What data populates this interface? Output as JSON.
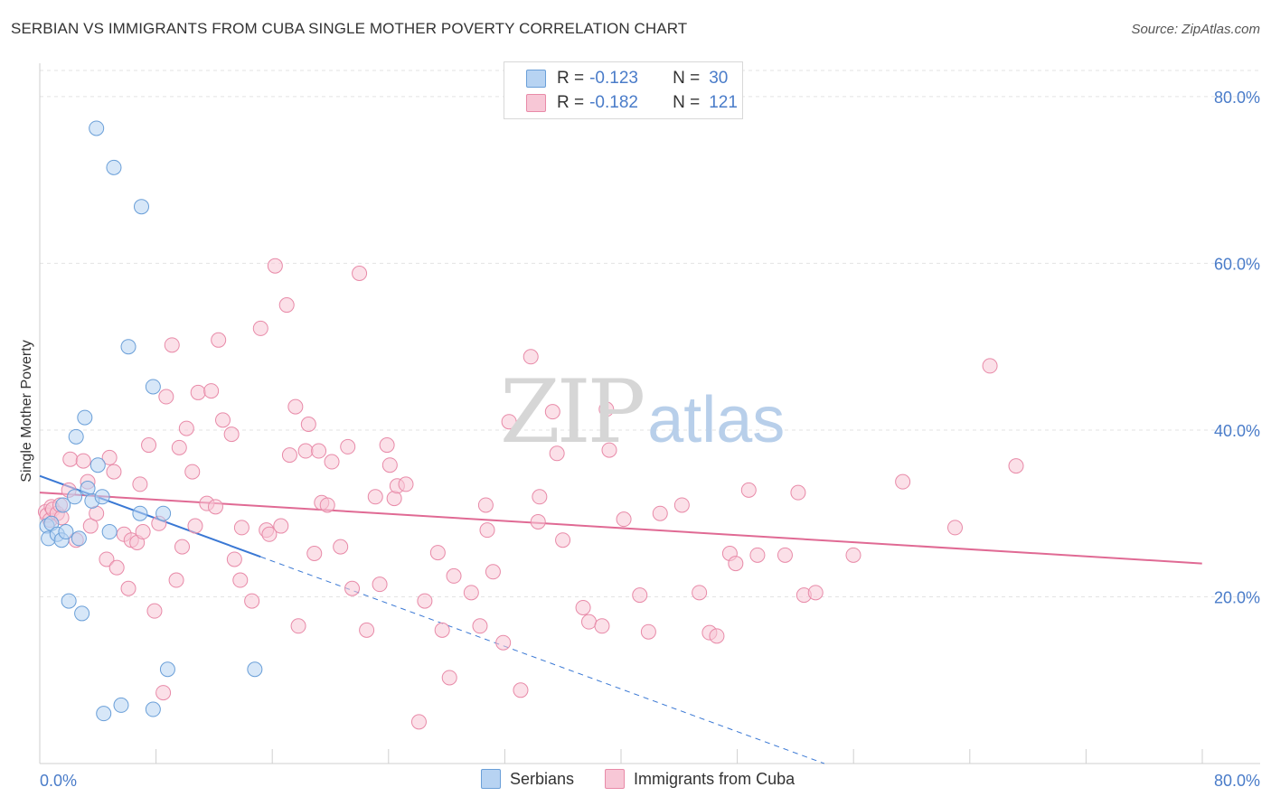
{
  "header": {
    "title": "SERBIAN VS IMMIGRANTS FROM CUBA SINGLE MOTHER POVERTY CORRELATION CHART",
    "source": "Source: ZipAtlas.com"
  },
  "watermark": {
    "main": "ZIP",
    "sub": "atlas"
  },
  "legend": {
    "r_label": "R =",
    "n_label": "N =",
    "series": [
      {
        "r": "-0.123",
        "n": "30"
      },
      {
        "r": "-0.182",
        "n": "121"
      }
    ]
  },
  "colors": {
    "serbians_fill": "#b7d3f2",
    "serbians_stroke": "#6a9fd8",
    "serbians_line": "#3a78d4",
    "cuba_fill": "#f7c7d6",
    "cuba_stroke": "#e88aa8",
    "cuba_line": "#e06a94",
    "tick_text": "#4a7cc9"
  },
  "chart_data": {
    "type": "scatter",
    "title": "SERBIAN VS IMMIGRANTS FROM CUBA SINGLE MOTHER POVERTY CORRELATION CHART",
    "xlabel": "",
    "ylabel": "Single Mother Poverty",
    "xlim": [
      0,
      84
    ],
    "ylim": [
      0,
      84
    ],
    "x_tick_labels": [
      "0.0%",
      "80.0%"
    ],
    "y_ticks": [
      20,
      40,
      60,
      80
    ],
    "y_tick_labels": [
      "20.0%",
      "40.0%",
      "60.0%",
      "80.0%"
    ],
    "grid": true,
    "series": [
      {
        "name": "Serbians",
        "r": -0.123,
        "n": 30,
        "points": [
          [
            0.5,
            28.5
          ],
          [
            0.6,
            27.0
          ],
          [
            0.8,
            28.8
          ],
          [
            1.2,
            27.5
          ],
          [
            1.5,
            26.8
          ],
          [
            1.6,
            31.0
          ],
          [
            1.8,
            27.8
          ],
          [
            2.0,
            19.5
          ],
          [
            2.4,
            32.0
          ],
          [
            2.5,
            39.2
          ],
          [
            2.7,
            27.0
          ],
          [
            2.9,
            18.0
          ],
          [
            3.1,
            41.5
          ],
          [
            3.3,
            33.0
          ],
          [
            3.6,
            31.5
          ],
          [
            4.0,
            35.8
          ],
          [
            4.3,
            32.0
          ],
          [
            4.8,
            27.8
          ],
          [
            5.1,
            71.5
          ],
          [
            5.6,
            7.0
          ],
          [
            6.1,
            50.0
          ],
          [
            6.9,
            30.0
          ],
          [
            7.8,
            6.5
          ],
          [
            7.8,
            45.2
          ],
          [
            8.5,
            30.0
          ],
          [
            8.8,
            11.3
          ],
          [
            14.8,
            11.3
          ],
          [
            7.0,
            66.8
          ],
          [
            3.9,
            76.2
          ],
          [
            4.4,
            6.0
          ]
        ],
        "trend": {
          "x0": 0,
          "y0": 34.5,
          "x1": 15.2,
          "y1": 24.8,
          "dash_to_x": 54,
          "dash_to_y": 0
        }
      },
      {
        "name": "Immigrants from Cuba",
        "r": -0.182,
        "n": 121,
        "points": [
          [
            0.4,
            30.2
          ],
          [
            0.5,
            29.8
          ],
          [
            0.7,
            29.2
          ],
          [
            0.8,
            30.8
          ],
          [
            0.9,
            30.5
          ],
          [
            1.2,
            30.0
          ],
          [
            1.4,
            31.0
          ],
          [
            1.5,
            29.5
          ],
          [
            2.0,
            32.8
          ],
          [
            2.1,
            36.5
          ],
          [
            2.5,
            26.8
          ],
          [
            3.0,
            36.3
          ],
          [
            3.3,
            33.8
          ],
          [
            3.5,
            28.5
          ],
          [
            3.9,
            30.0
          ],
          [
            4.6,
            24.5
          ],
          [
            4.8,
            36.7
          ],
          [
            5.1,
            35.0
          ],
          [
            5.3,
            23.5
          ],
          [
            5.8,
            27.5
          ],
          [
            6.1,
            21.0
          ],
          [
            6.3,
            26.8
          ],
          [
            6.7,
            26.5
          ],
          [
            6.9,
            33.5
          ],
          [
            7.1,
            27.8
          ],
          [
            7.5,
            38.2
          ],
          [
            7.9,
            18.3
          ],
          [
            8.2,
            28.8
          ],
          [
            8.5,
            8.5
          ],
          [
            8.7,
            44.0
          ],
          [
            9.1,
            50.2
          ],
          [
            9.4,
            22.0
          ],
          [
            9.6,
            37.9
          ],
          [
            9.8,
            26.0
          ],
          [
            10.1,
            40.2
          ],
          [
            10.5,
            35.0
          ],
          [
            10.7,
            28.5
          ],
          [
            10.9,
            44.5
          ],
          [
            11.5,
            31.2
          ],
          [
            11.8,
            44.7
          ],
          [
            12.1,
            30.8
          ],
          [
            12.3,
            50.8
          ],
          [
            12.6,
            41.2
          ],
          [
            13.2,
            39.5
          ],
          [
            13.4,
            24.5
          ],
          [
            13.8,
            22.0
          ],
          [
            13.9,
            28.3
          ],
          [
            14.6,
            19.5
          ],
          [
            15.2,
            52.2
          ],
          [
            15.6,
            28.0
          ],
          [
            15.8,
            27.5
          ],
          [
            16.2,
            59.7
          ],
          [
            16.6,
            28.5
          ],
          [
            17.0,
            55.0
          ],
          [
            17.2,
            37.0
          ],
          [
            17.6,
            42.8
          ],
          [
            17.8,
            16.5
          ],
          [
            18.3,
            37.5
          ],
          [
            18.5,
            40.7
          ],
          [
            18.9,
            25.2
          ],
          [
            19.2,
            37.5
          ],
          [
            19.4,
            31.3
          ],
          [
            19.8,
            31.0
          ],
          [
            20.1,
            36.2
          ],
          [
            20.7,
            26.0
          ],
          [
            21.2,
            38.0
          ],
          [
            21.5,
            21.0
          ],
          [
            22.0,
            58.8
          ],
          [
            22.5,
            16.0
          ],
          [
            23.1,
            32.0
          ],
          [
            23.4,
            21.5
          ],
          [
            23.9,
            38.2
          ],
          [
            24.1,
            35.8
          ],
          [
            24.4,
            31.8
          ],
          [
            24.6,
            33.3
          ],
          [
            25.2,
            33.5
          ],
          [
            26.1,
            5.0
          ],
          [
            26.5,
            19.5
          ],
          [
            27.4,
            25.3
          ],
          [
            27.7,
            16.0
          ],
          [
            28.2,
            10.3
          ],
          [
            28.5,
            22.5
          ],
          [
            29.7,
            20.5
          ],
          [
            30.3,
            16.5
          ],
          [
            30.7,
            31.0
          ],
          [
            30.8,
            28.0
          ],
          [
            31.2,
            23.0
          ],
          [
            31.9,
            14.5
          ],
          [
            32.3,
            41.0
          ],
          [
            33.1,
            8.8
          ],
          [
            33.8,
            48.8
          ],
          [
            34.3,
            29.0
          ],
          [
            34.4,
            32.0
          ],
          [
            35.3,
            42.2
          ],
          [
            35.6,
            37.2
          ],
          [
            36.0,
            26.8
          ],
          [
            37.4,
            18.7
          ],
          [
            37.8,
            17.0
          ],
          [
            38.7,
            16.5
          ],
          [
            39.0,
            42.5
          ],
          [
            39.2,
            37.6
          ],
          [
            40.2,
            29.3
          ],
          [
            41.3,
            20.2
          ],
          [
            41.9,
            15.8
          ],
          [
            42.7,
            30.0
          ],
          [
            44.2,
            31.0
          ],
          [
            45.4,
            20.5
          ],
          [
            46.1,
            15.7
          ],
          [
            46.6,
            15.3
          ],
          [
            47.5,
            25.2
          ],
          [
            47.9,
            24.0
          ],
          [
            48.8,
            32.8
          ],
          [
            49.4,
            25.0
          ],
          [
            51.3,
            25.0
          ],
          [
            52.2,
            32.5
          ],
          [
            52.6,
            20.2
          ],
          [
            53.4,
            20.5
          ],
          [
            56.0,
            25.0
          ],
          [
            59.4,
            33.8
          ],
          [
            63.0,
            28.3
          ],
          [
            65.4,
            47.7
          ],
          [
            67.2,
            35.7
          ]
        ],
        "trend": {
          "x0": 0,
          "y0": 32.5,
          "x1": 80,
          "y1": 24.0
        }
      }
    ],
    "legend_labels": [
      "Serbians",
      "Immigrants from Cuba"
    ]
  }
}
